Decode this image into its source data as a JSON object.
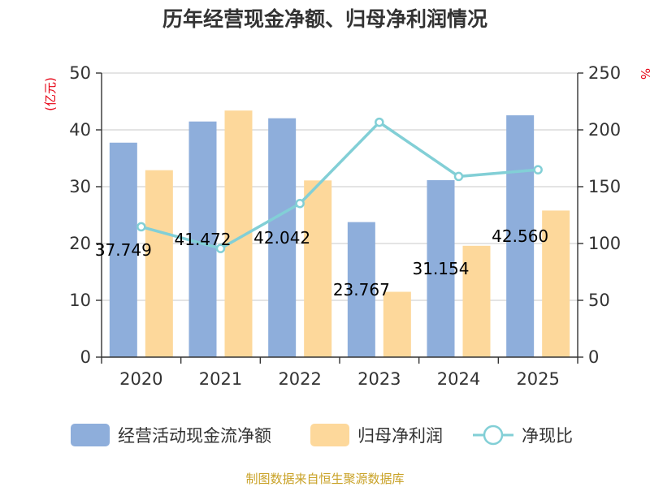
{
  "chart_data": {
    "type": "bar",
    "title": "历年经营现金净额、归母净利润情况",
    "left_unit": "(亿元)",
    "right_unit": "%",
    "categories": [
      "2020",
      "2021",
      "2022",
      "2023",
      "2024",
      "2025"
    ],
    "ylim_left": [
      0,
      50
    ],
    "yticks_left": [
      "0",
      "10",
      "20",
      "30",
      "40",
      "50"
    ],
    "ylim_right": [
      0,
      250
    ],
    "yticks_right": [
      "0",
      "50",
      "100",
      "150",
      "200",
      "250"
    ],
    "grid": true,
    "legend_position": "bottom",
    "series": [
      {
        "name": "经营活动现金流净额",
        "kind": "bar",
        "axis": "left",
        "color": "#8eaedb",
        "values": [
          37.749,
          41.472,
          42.042,
          23.767,
          31.154,
          42.56
        ],
        "data_labels": [
          "37.749",
          "41.472",
          "42.042",
          "23.767",
          "31.154",
          "42.560"
        ]
      },
      {
        "name": "归母净利润",
        "kind": "bar",
        "axis": "left",
        "color": "#fdd89b",
        "values": [
          32.9,
          43.4,
          31.1,
          11.5,
          19.6,
          25.8
        ]
      },
      {
        "name": "净现比",
        "kind": "line",
        "axis": "right",
        "color": "#82cfd6",
        "values": [
          114.7,
          95.6,
          135.2,
          206.7,
          159.0,
          164.9
        ]
      }
    ],
    "source": "制图数据来自恒生聚源数据库"
  }
}
